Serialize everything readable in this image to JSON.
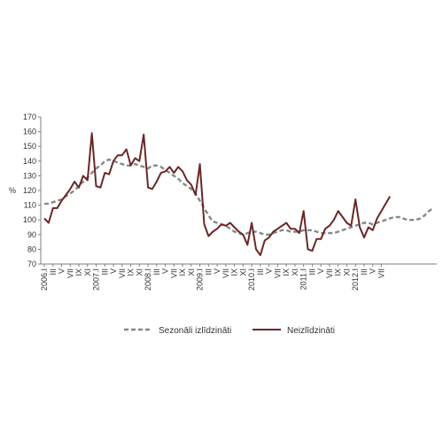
{
  "chart_data": {
    "type": "line",
    "ylabel": "%",
    "ylim": [
      70,
      170
    ],
    "yticks": [
      70,
      80,
      90,
      100,
      110,
      120,
      130,
      140,
      150,
      160,
      170
    ],
    "grid": false,
    "legend_position": "bottom",
    "x_tick_labels": [
      "2006.I",
      "III",
      "V",
      "VII",
      "IX",
      "XI",
      "2007.I",
      "III",
      "V",
      "VII",
      "IX",
      "XI",
      "2008.I",
      "III",
      "V",
      "VII",
      "IX",
      "XI",
      "2009.I",
      "III",
      "V",
      "VII",
      "IX",
      "XI",
      "2010.I",
      "III",
      "V",
      "VII",
      "IX",
      "XI",
      "2011.I",
      "III",
      "V",
      "VII",
      "IX",
      "XI",
      "2012.I",
      "III",
      "V",
      "VII"
    ],
    "series": [
      {
        "name": "Sezonāli izlīdzināti",
        "color": "#888888",
        "dash": true,
        "values": [
          111,
          111,
          112,
          113,
          114,
          116,
          118,
          120,
          123,
          126,
          129,
          132,
          135,
          137,
          140,
          141,
          140,
          139,
          138,
          137,
          137,
          138,
          137,
          136,
          135,
          137,
          137,
          136,
          134,
          132,
          130,
          128,
          125,
          123,
          121,
          118,
          113,
          108,
          103,
          99,
          98,
          97,
          96,
          94,
          92,
          91,
          90,
          91,
          92,
          92,
          91,
          90,
          90,
          91,
          92,
          93,
          93,
          92,
          92,
          92,
          93,
          93,
          93,
          92,
          91,
          91,
          91,
          91,
          92,
          93,
          94,
          95,
          96,
          97,
          98,
          98,
          97,
          98,
          99,
          100,
          101,
          102,
          102,
          101,
          100,
          100,
          100,
          101,
          103,
          106,
          108
        ]
      },
      {
        "name": "Neizlīdzināti",
        "color": "#6b2727",
        "dash": false,
        "values": [
          101,
          98,
          108,
          108,
          113,
          117,
          121,
          126,
          122,
          130,
          127,
          159,
          123,
          122,
          132,
          131,
          140,
          144,
          144,
          148,
          137,
          142,
          140,
          158,
          122,
          121,
          126,
          132,
          133,
          136,
          132,
          136,
          133,
          127,
          124,
          117,
          138,
          97,
          89,
          92,
          94,
          97,
          96,
          98,
          95,
          92,
          90,
          83,
          98,
          80,
          76,
          86,
          88,
          92,
          94,
          96,
          98,
          94,
          94,
          91,
          106,
          80,
          79,
          87,
          87,
          94,
          96,
          100,
          106,
          102,
          98,
          96,
          114,
          95,
          88,
          95,
          93,
          101,
          106,
          111,
          116
        ]
      }
    ]
  }
}
